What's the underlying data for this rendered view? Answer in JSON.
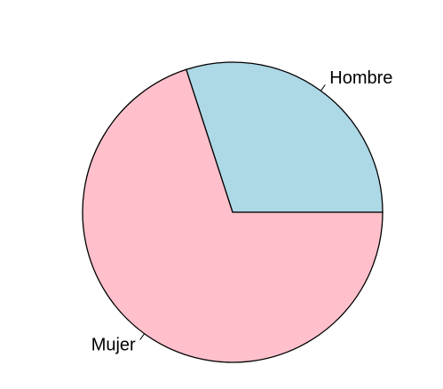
{
  "chart_data": {
    "type": "pie",
    "categories": [
      "Hombre",
      "Mujer"
    ],
    "values": [
      30,
      70
    ],
    "colors": [
      "#add8e6",
      "#ffc0cb"
    ]
  }
}
